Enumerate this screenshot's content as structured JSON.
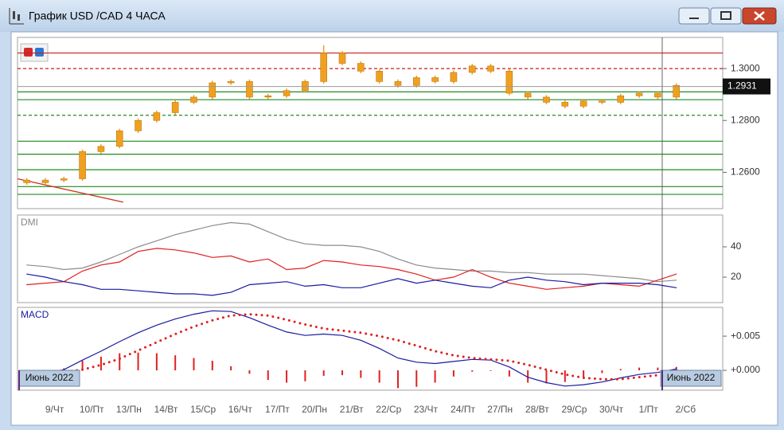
{
  "window": {
    "title": "График USD /CAD  4 ЧАСА"
  },
  "chart_data": [
    {
      "type": "candlestick",
      "categories": [
        null,
        null,
        "9/Чт",
        null,
        "10/Пт",
        null,
        "13/Пн",
        null,
        "14/Вт",
        null,
        "15/Ср",
        null,
        "16/Чт",
        null,
        "17/Пт",
        null,
        "20/Пн",
        null,
        "21/Вт",
        null,
        "22/Ср",
        null,
        "23/Чт",
        null,
        "24/Пт",
        null,
        "27/Пн",
        null,
        "28/Вт",
        null,
        "29/Ср",
        null,
        "30/Чт",
        null,
        "1/Пт",
        null,
        "2/Сб",
        null
      ],
      "open": [
        1.257,
        1.256,
        1.257,
        1.2575,
        1.268,
        1.27,
        1.276,
        1.28,
        1.283,
        1.287,
        1.289,
        1.2945,
        1.295,
        1.289,
        1.2895,
        1.2915,
        1.295,
        1.306,
        1.302,
        1.299,
        1.295,
        1.2935,
        1.2965,
        1.295,
        1.2985,
        1.301,
        1.299,
        1.2905,
        1.289,
        1.287,
        1.2855,
        1.2875,
        1.287,
        1.2895,
        1.2905,
        1.289,
        null,
        null
      ],
      "high": [
        1.2578,
        1.2578,
        1.2583,
        1.2688,
        1.2708,
        1.2768,
        1.2808,
        1.2838,
        1.2878,
        1.2898,
        1.2953,
        1.2958,
        1.2958,
        1.2903,
        1.2923,
        1.2958,
        1.309,
        1.3068,
        1.3028,
        1.2998,
        1.2958,
        1.2973,
        1.2973,
        1.2993,
        1.3018,
        1.3018,
        1.2998,
        1.2913,
        1.2898,
        1.2878,
        1.2883,
        1.2883,
        1.2903,
        1.2913,
        1.2913,
        1.2943,
        null,
        null
      ],
      "low": [
        1.2552,
        1.2552,
        1.2562,
        1.2567,
        1.2672,
        1.2692,
        1.2752,
        1.2792,
        1.2822,
        1.2862,
        1.2882,
        1.2937,
        1.2882,
        1.2882,
        1.2887,
        1.2907,
        1.2942,
        1.3012,
        1.2982,
        1.2942,
        1.2927,
        1.2927,
        1.2942,
        1.2942,
        1.2977,
        1.2982,
        1.2897,
        1.2882,
        1.2862,
        1.2847,
        1.2847,
        1.2862,
        1.2862,
        1.2887,
        1.2882,
        1.2882,
        null,
        null
      ],
      "close": [
        1.256,
        1.257,
        1.2575,
        1.268,
        1.27,
        1.276,
        1.28,
        1.283,
        1.287,
        1.289,
        1.2945,
        1.295,
        1.289,
        1.2895,
        1.2915,
        1.295,
        1.306,
        1.302,
        1.299,
        1.295,
        1.2935,
        1.2965,
        1.295,
        1.2985,
        1.301,
        1.299,
        1.2905,
        1.289,
        1.287,
        1.2855,
        1.2875,
        1.287,
        1.2895,
        1.2905,
        1.289,
        1.2935,
        null,
        null
      ],
      "color": "#f0a020",
      "ylim": [
        1.246,
        1.312
      ],
      "yticks": [
        {
          "value": 1.26,
          "label": "1.2600"
        },
        {
          "value": 1.28,
          "label": "1.2800"
        },
        {
          "value": 1.3,
          "label": "1.3000"
        }
      ],
      "last_price": 1.2931,
      "levels": [
        {
          "value": 1.306,
          "color": "#c81e1e",
          "dashed": false
        },
        {
          "value": 1.3,
          "color": "#c81e1e",
          "dashed": true
        },
        {
          "value": 1.291,
          "color": "#1e8c1e",
          "dashed": false
        },
        {
          "value": 1.288,
          "color": "#1e8c1e",
          "dashed": false
        },
        {
          "value": 1.282,
          "color": "#1e8c1e",
          "dashed": true
        },
        {
          "value": 1.272,
          "color": "#1e8c1e",
          "dashed": false
        },
        {
          "value": 1.267,
          "color": "#1e8c1e",
          "dashed": false
        },
        {
          "value": 1.261,
          "color": "#1e8c1e",
          "dashed": false
        },
        {
          "value": 1.2545,
          "color": "#1e8c1e",
          "dashed": false
        },
        {
          "value": 1.2515,
          "color": "#1e8c1e",
          "dashed": false
        }
      ],
      "trendline": {
        "color": "#d03020",
        "values": [
          1.2575,
          1.2485
        ]
      }
    },
    {
      "type": "line",
      "title": "DMI",
      "ylim": [
        3.2,
        61
      ],
      "yticks": [
        20,
        40
      ],
      "series": [
        {
          "style": "line",
          "color": "#8c8c8c",
          "values": [
            28,
            27,
            25,
            26,
            30,
            35,
            40,
            44,
            48,
            51,
            54,
            56,
            55,
            50,
            45,
            42,
            41,
            41,
            40,
            37,
            32,
            28,
            26,
            25,
            24,
            24,
            23,
            23,
            22,
            22,
            22,
            21,
            20,
            19,
            17,
            18,
            null,
            null
          ]
        },
        {
          "style": "line",
          "color": "#e02020",
          "values": [
            15,
            16,
            17,
            24,
            28,
            30,
            37,
            39,
            38,
            36,
            33,
            34,
            30,
            32,
            25,
            26,
            31,
            30,
            28,
            27,
            25,
            22,
            18,
            20,
            25,
            20,
            16,
            14,
            12,
            13,
            14,
            16,
            15,
            14,
            18,
            22,
            null,
            null
          ]
        },
        {
          "style": "line",
          "color": "#1a1aa0",
          "values": [
            22,
            20,
            17,
            15,
            12,
            12,
            11,
            10,
            9,
            9,
            8,
            10,
            15,
            16,
            17,
            14,
            15,
            13,
            13,
            16,
            19,
            16,
            18,
            16,
            14,
            13,
            18,
            20,
            18,
            17,
            15,
            16,
            16,
            16,
            15,
            13,
            null,
            null
          ]
        }
      ]
    },
    {
      "type": "line",
      "title": "MACD",
      "ylim": [
        -0.0029,
        0.0092
      ],
      "yticks": [
        {
          "value": 0,
          "label": "+0.000"
        },
        {
          "value": 0.005,
          "label": "+0.005"
        }
      ],
      "series": [
        {
          "style": "bars",
          "color": "#e02020",
          "values": [
            -0.0002,
            -0.0001,
            0.0003,
            0.0014,
            0.002,
            0.0025,
            0.0026,
            0.0025,
            0.0022,
            0.0018,
            0.0014,
            0.0006,
            -0.0005,
            -0.0014,
            -0.0018,
            -0.0016,
            -0.0008,
            -0.0007,
            -0.0011,
            -0.0018,
            -0.0026,
            -0.0024,
            -0.0018,
            -0.0009,
            -0.0002,
            -0.0001,
            -0.0009,
            -0.0018,
            -0.0019,
            -0.0017,
            -0.001,
            -0.0004,
            0.0002,
            0.0004,
            0.0004,
            0.0005,
            null,
            null
          ]
        },
        {
          "style": "line",
          "color": "#1a1aa0",
          "values": [
            -0.0005,
            -0.0004,
            0.0001,
            0.0015,
            0.0028,
            0.0042,
            0.0055,
            0.0066,
            0.0075,
            0.0082,
            0.0087,
            0.0086,
            0.0077,
            0.0066,
            0.0056,
            0.0051,
            0.0053,
            0.0051,
            0.0044,
            0.0032,
            0.0018,
            0.0012,
            0.001,
            0.0013,
            0.0016,
            0.0015,
            0.0005,
            -0.001,
            -0.0018,
            -0.0023,
            -0.0021,
            -0.0017,
            -0.0011,
            -0.0006,
            -0.0003,
            0.0002,
            null,
            null
          ]
        },
        {
          "style": "dots",
          "color": "#e02020",
          "values": [
            -0.0003,
            -0.0003,
            -0.0002,
            0.0001,
            0.0008,
            0.0017,
            0.0029,
            0.0041,
            0.0053,
            0.0064,
            0.0073,
            0.008,
            0.0082,
            0.008,
            0.0074,
            0.0067,
            0.0061,
            0.0058,
            0.0055,
            0.005,
            0.0044,
            0.0036,
            0.0028,
            0.0022,
            0.0018,
            0.0016,
            0.0014,
            0.0008,
            0.0001,
            -0.0006,
            -0.0011,
            -0.0013,
            -0.0013,
            -0.001,
            -0.0007,
            -0.0003,
            null,
            null
          ]
        }
      ],
      "period_labels": [
        "Июнь 2022",
        "Июнь 2022"
      ]
    }
  ]
}
